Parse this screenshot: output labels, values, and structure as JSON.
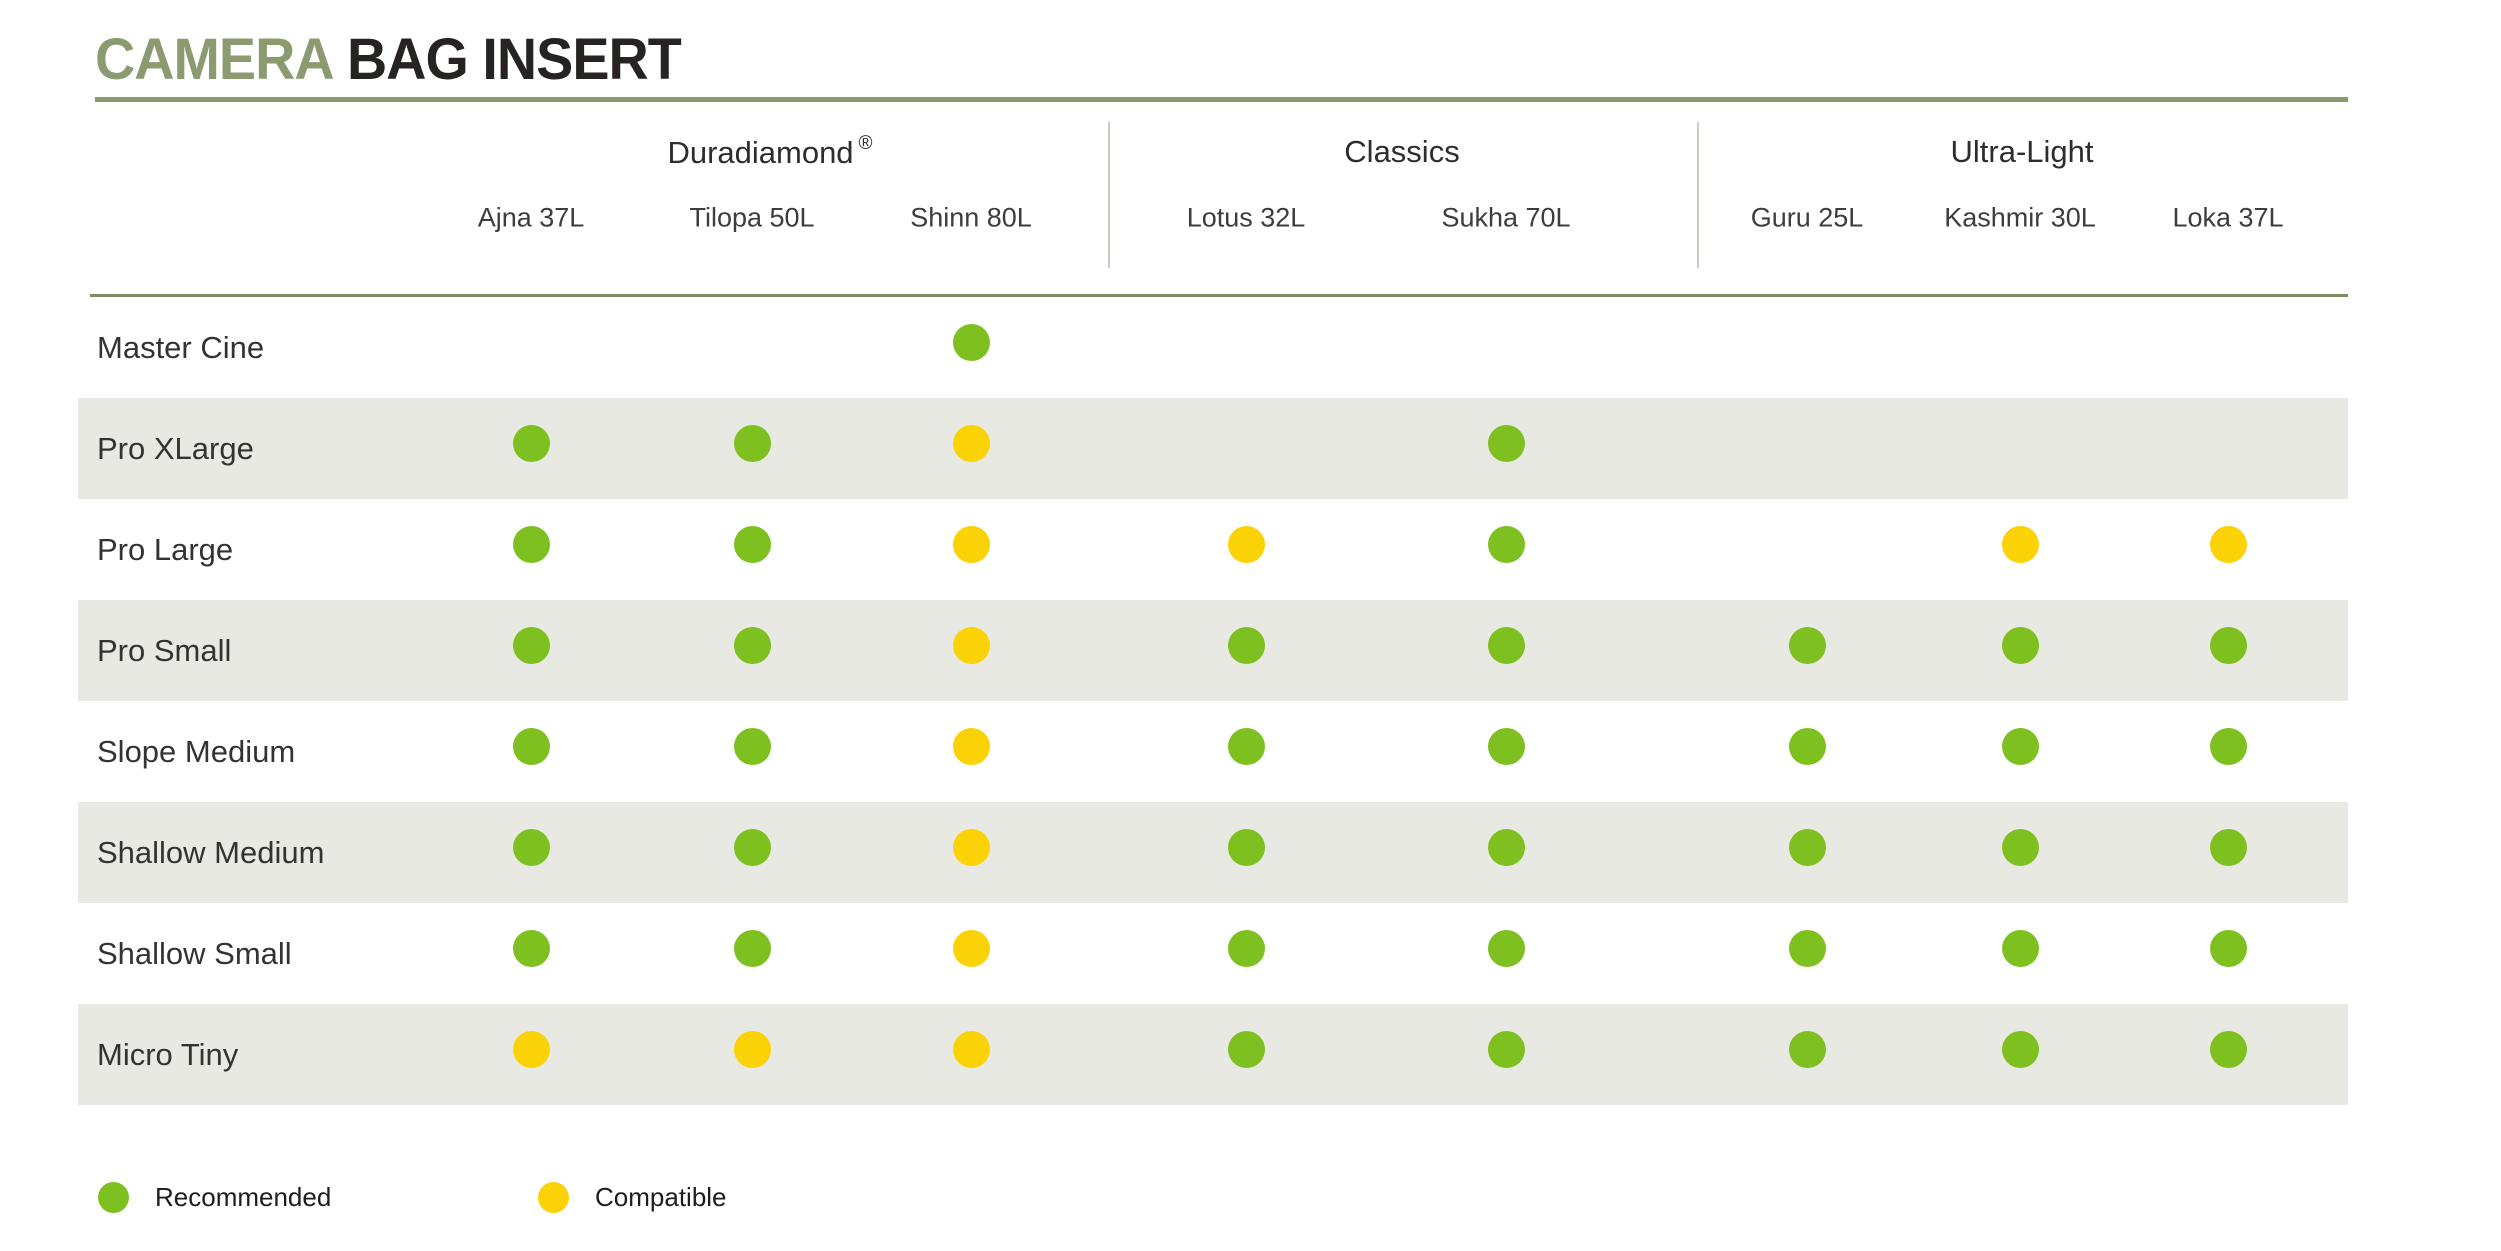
{
  "page_title": {
    "accent": "CAMERA",
    "rest": "BAG INSERT"
  },
  "colors": {
    "recommended": "#7DC01F",
    "compatible": "#FBD205",
    "title_accent": "#8C9A70",
    "table_rule": "#7E8B67",
    "group_divider": "#C9CCC0",
    "row_band": "#E9E9E3"
  },
  "legend": [
    {
      "status": "recommended",
      "label": "Recommended"
    },
    {
      "status": "compatible",
      "label": "Compatible"
    }
  ],
  "chart_data": {
    "type": "table",
    "title": "CAMERA BAG INSERT",
    "column_groups": [
      {
        "label": "Duradiamond",
        "registered_mark": "®",
        "columns": [
          "Ajna 37L",
          "Tilopa 50L",
          "Shinn 80L"
        ]
      },
      {
        "label": "Classics",
        "columns": [
          "Lotus 32L",
          "Sukha 70L"
        ]
      },
      {
        "label": "Ultra-Light",
        "columns": [
          "Guru 25L",
          "Kashmir 30L",
          "Loka 37L"
        ]
      }
    ],
    "rows": [
      {
        "label": "Master Cine",
        "values": [
          null,
          null,
          "recommended",
          null,
          null,
          null,
          null,
          null
        ]
      },
      {
        "label": "Pro XLarge",
        "values": [
          "recommended",
          "recommended",
          "compatible",
          null,
          "recommended",
          null,
          null,
          null
        ]
      },
      {
        "label": "Pro Large",
        "values": [
          "recommended",
          "recommended",
          "compatible",
          "compatible",
          "recommended",
          null,
          "compatible",
          "compatible"
        ]
      },
      {
        "label": "Pro Small",
        "values": [
          "recommended",
          "recommended",
          "compatible",
          "recommended",
          "recommended",
          "recommended",
          "recommended",
          "recommended"
        ]
      },
      {
        "label": "Slope Medium",
        "values": [
          "recommended",
          "recommended",
          "compatible",
          "recommended",
          "recommended",
          "recommended",
          "recommended",
          "recommended"
        ]
      },
      {
        "label": "Shallow Medium",
        "values": [
          "recommended",
          "recommended",
          "compatible",
          "recommended",
          "recommended",
          "recommended",
          "recommended",
          "recommended"
        ]
      },
      {
        "label": "Shallow Small",
        "values": [
          "recommended",
          "recommended",
          "compatible",
          "recommended",
          "recommended",
          "recommended",
          "recommended",
          "recommended"
        ]
      },
      {
        "label": "Micro Tiny",
        "values": [
          "compatible",
          "compatible",
          "compatible",
          "recommended",
          "recommended",
          "recommended",
          "recommended",
          "recommended"
        ]
      }
    ],
    "legend_entries": [
      "Recommended (green dot)",
      "Compatible (yellow dot)"
    ]
  }
}
